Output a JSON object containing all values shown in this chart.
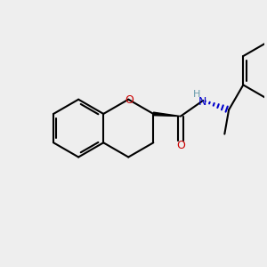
{
  "bg_color": "#eeeeee",
  "bond_color": "#000000",
  "o_color": "#cc0000",
  "n_color": "#0000cc",
  "h_color": "#6699aa",
  "lw": 1.5,
  "figsize": [
    3.0,
    3.0
  ],
  "dpi": 100,
  "xlim": [
    0,
    10
  ],
  "ylim": [
    0,
    10
  ]
}
